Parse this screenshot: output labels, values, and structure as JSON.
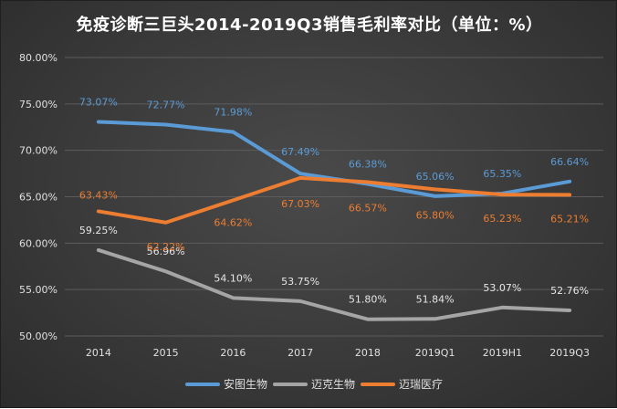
{
  "chart_data": {
    "type": "line",
    "title": "免疫诊断三巨头2014-2019Q3销售毛利率对比（单位：%）",
    "categories": [
      "2014",
      "2015",
      "2016",
      "2017",
      "2018",
      "2019Q1",
      "2019H1",
      "2019Q3"
    ],
    "ylim": [
      50,
      80
    ],
    "yticks": [
      "50.00%",
      "55.00%",
      "60.00%",
      "65.00%",
      "70.00%",
      "75.00%",
      "80.00%"
    ],
    "grid": true,
    "legend_position": "bottom",
    "series": [
      {
        "name": "安图生物",
        "color": "#5b9bd5",
        "values": [
          73.07,
          72.77,
          71.98,
          67.49,
          66.38,
          65.06,
          65.35,
          66.64
        ],
        "labels": [
          "73.07%",
          "72.77%",
          "71.98%",
          "67.49%",
          "66.38%",
          "65.06%",
          "65.35%",
          "66.64%"
        ]
      },
      {
        "name": "迈克生物",
        "color": "#a5a5a5",
        "values": [
          59.25,
          56.96,
          54.1,
          53.75,
          51.8,
          51.84,
          53.07,
          52.76
        ],
        "labels": [
          "59.25%",
          "56.96%",
          "54.10%",
          "53.75%",
          "51.80%",
          "51.84%",
          "53.07%",
          "52.76%"
        ]
      },
      {
        "name": "迈瑞医疗",
        "color": "#ed7d31",
        "values": [
          63.43,
          62.22,
          64.62,
          67.03,
          66.57,
          65.8,
          65.23,
          65.21
        ],
        "labels": [
          "63.43%",
          "62.22%",
          "64.62%",
          "67.03%",
          "66.57%",
          "65.80%",
          "65.23%",
          "65.21%"
        ]
      }
    ]
  }
}
